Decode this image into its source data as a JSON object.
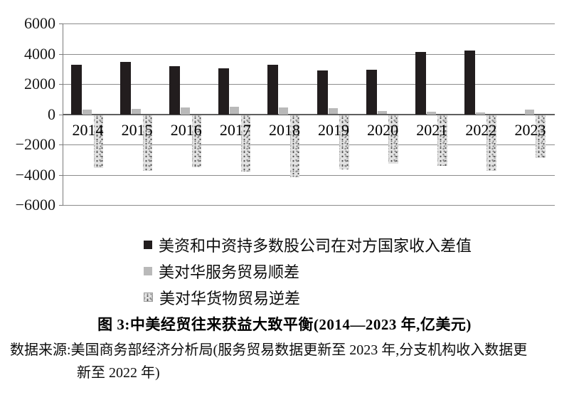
{
  "figure": {
    "caption": "图 3:中美经贸往来获益大致平衡(2014—2023 年,亿美元)",
    "source": {
      "line1": "数据来源:美国商务部经济分析局(服务贸易数据更新至 2023 年,分支机构收入数据更",
      "line2": "新至 2022 年)"
    }
  },
  "colors": {
    "series_black": "#221d1e",
    "series_gray": "#b9b9b9",
    "series_speckle_base": "#e2e2e2",
    "gridline": "#8c8c8c",
    "text": "#111111"
  },
  "chart_data": {
    "type": "bar",
    "title": "图 3:中美经贸往来获益大致平衡(2014—2023 年,亿美元)",
    "xlabel": "",
    "ylabel": "",
    "unit": "亿美元",
    "categories": [
      "2014",
      "2015",
      "2016",
      "2017",
      "2018",
      "2019",
      "2020",
      "2021",
      "2022",
      "2023"
    ],
    "series": [
      {
        "name": "美资和中资持多数股公司在对方国家收入差值",
        "style": "solid-black",
        "values": [
          3250,
          3450,
          3200,
          3050,
          3250,
          2900,
          2950,
          4100,
          4200,
          null
        ]
      },
      {
        "name": "美对华服务贸易顺差",
        "style": "solid-gray",
        "values": [
          300,
          360,
          450,
          480,
          450,
          380,
          220,
          150,
          100,
          300
        ]
      },
      {
        "name": "美对华货物贸易逆差",
        "style": "speckled",
        "values": [
          -3500,
          -3700,
          -3450,
          -3750,
          -4100,
          -3600,
          -3200,
          -3350,
          -3700,
          -2850
        ]
      }
    ],
    "ylim": [
      -6000,
      6000
    ],
    "yticks": [
      6000,
      4000,
      2000,
      0,
      -2000,
      -4000,
      -6000
    ],
    "ytick_labels": [
      "6000",
      "4000",
      "2000",
      "0",
      "−2000",
      "−4000",
      "−6000"
    ],
    "legend_position": "bottom-left",
    "grid": "horizontal"
  }
}
